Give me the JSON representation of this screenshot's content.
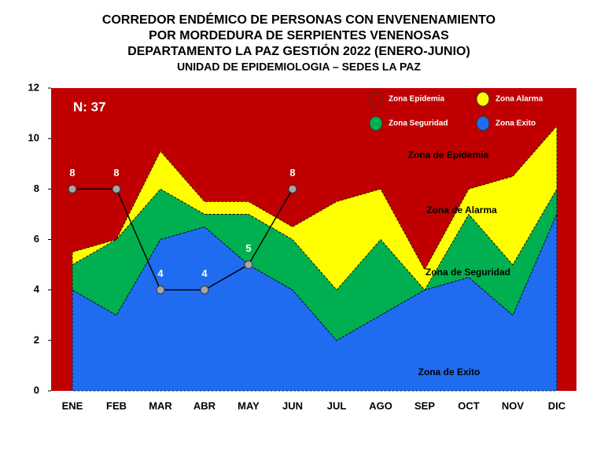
{
  "chart_data": {
    "type": "stacked_area",
    "title": [
      "CORREDOR ENDÉMICO DE PERSONAS CON ENVENENAMIENTO",
      "POR MORDEDURA DE SERPIENTES VENENOSAS",
      "DEPARTAMENTO LA PAZ GESTIÓN 2022 (ENERO-JUNIO)",
      "UNIDAD DE EPIDEMIOLOGIA – SEDES LA PAZ"
    ],
    "annotation": "N: 37",
    "zone_labels": [
      "Zona de  Epidemia",
      "Zona de Alarma",
      "Zona de Seguridad",
      "Zona de Exito"
    ],
    "categories": [
      "ENE",
      "FEB",
      "MAR",
      "ABR",
      "MAY",
      "JUN",
      "JUL",
      "AGO",
      "SEP",
      "OCT",
      "NOV",
      "DIC"
    ],
    "background": {
      "name": "Zona Epidemia",
      "color": "#c00000"
    },
    "series": [
      {
        "name": "Zona Exito",
        "color": "#1f6cf0",
        "values": [
          4,
          3,
          6,
          6.5,
          5,
          4,
          2,
          3,
          4,
          4.5,
          3,
          7
        ]
      },
      {
        "name": "Zona Seguridad",
        "color": "#00b050",
        "values": [
          1,
          3,
          2,
          0.5,
          2,
          2,
          2,
          3,
          0,
          2.5,
          2,
          1
        ]
      },
      {
        "name": "Zona Alarma",
        "color": "#ffff00",
        "values": [
          0.5,
          0,
          1.5,
          0.5,
          0.5,
          0.5,
          3.5,
          2,
          0.8,
          1,
          3.5,
          2.5
        ]
      }
    ],
    "cases": {
      "color": "#000000",
      "marker_color": "#a6a6a6",
      "values": [
        8,
        8,
        4,
        4,
        5,
        8,
        null,
        null,
        null,
        null,
        null,
        null
      ]
    },
    "ylim": [
      0,
      12
    ],
    "yticks": [
      0,
      2,
      4,
      6,
      8,
      10,
      12
    ]
  }
}
